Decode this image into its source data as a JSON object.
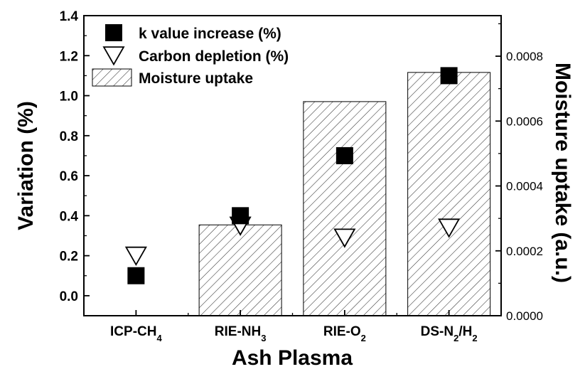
{
  "chart_data": {
    "type": "bar",
    "categories": [
      {
        "base": "ICP-CH",
        "sub": "4",
        "tail": ""
      },
      {
        "base": "RIE-NH",
        "sub": "3",
        "tail": ""
      },
      {
        "base": "RIE-O",
        "sub": "2",
        "tail": ""
      },
      {
        "base": "DS-N",
        "sub": "2",
        "tail": "/H",
        "sub2": "2"
      }
    ],
    "xlabel": "Ash Plasma",
    "ylabel": "Variation (%)",
    "ylabel_right": "Moisture uptake (a.u.)",
    "ylim": [
      -0.1,
      1.4
    ],
    "ylim_right": [
      0,
      0.000925
    ],
    "yticks": [
      "0.0",
      "0.2",
      "0.4",
      "0.6",
      "0.8",
      "1.0",
      "1.2",
      "1.4"
    ],
    "yticks_right": [
      "0.0000",
      "0.0002",
      "0.0004",
      "0.0006",
      "0.0008"
    ],
    "series": [
      {
        "name": "Moisture uptake",
        "type": "bar",
        "axis": "right",
        "pattern": "hatch",
        "values": [
          0,
          0.00028,
          0.00066,
          0.00075
        ]
      },
      {
        "name": "k value increase (%)",
        "type": "scatter",
        "marker": "filled-square",
        "axis": "left",
        "values": [
          0.1,
          0.4,
          0.7,
          1.1
        ]
      },
      {
        "name": "Carbon depletion (%)",
        "type": "scatter",
        "marker": "open-triangle-down",
        "axis": "left",
        "values": [
          0.2,
          0.35,
          0.29,
          0.34
        ]
      }
    ],
    "legend_position": "top-left",
    "grid": false
  }
}
